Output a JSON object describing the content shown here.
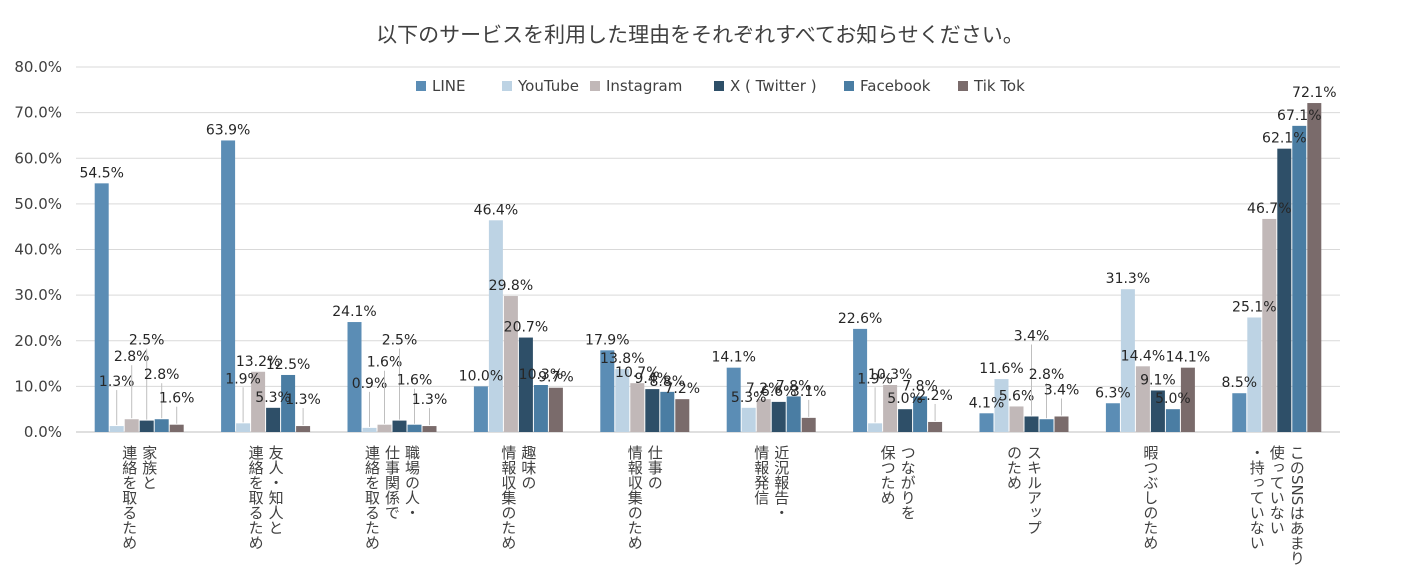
{
  "chart_data": {
    "type": "bar",
    "title": "以下のサービスを利用した理由をそれぞれすべてお知らせください。",
    "xlabel": "",
    "ylabel": "",
    "ylim": [
      0,
      80
    ],
    "yticks": [
      0,
      10,
      20,
      30,
      40,
      50,
      60,
      70,
      80
    ],
    "ytick_labels": [
      "0.0%",
      "10.0%",
      "20.0%",
      "30.0%",
      "40.0%",
      "50.0%",
      "60.0%",
      "70.0%",
      "80.0%"
    ],
    "grid": true,
    "legend_position": "top",
    "categories": [
      [
        "家族と",
        "連絡を取るため"
      ],
      [
        "友人・知人と",
        "連絡を取るため"
      ],
      [
        "職場の人・",
        "仕事関係で",
        "連絡を取るため"
      ],
      [
        "趣味の",
        "情報収集のため"
      ],
      [
        "仕事の",
        "情報収集のため"
      ],
      [
        "近況報告・",
        "情報発信"
      ],
      [
        "つながりを",
        "保つため"
      ],
      [
        "スキルアップ",
        "のため"
      ],
      [
        "暇つぶしのため"
      ],
      [
        "このSNSはあまり",
        "使っていない",
        "・持っていない"
      ]
    ],
    "series": [
      {
        "name": "LINE",
        "color": "#5b8db5",
        "values": [
          54.5,
          63.9,
          24.1,
          10.0,
          17.9,
          14.1,
          22.6,
          4.1,
          6.3,
          8.5
        ],
        "labels": [
          "54.5%",
          "63.9%",
          "24.1%",
          "10.0%",
          "17.9%",
          "14.1%",
          "22.6%",
          "4.1%",
          "6.3%",
          "8.5%"
        ]
      },
      {
        "name": "YouTube",
        "color": "#bdd3e4",
        "values": [
          1.3,
          1.9,
          0.9,
          46.4,
          13.8,
          5.3,
          1.9,
          11.6,
          31.3,
          25.1
        ],
        "labels": [
          "1.3%",
          "1.9%",
          "0.9%",
          "46.4%",
          "13.8%",
          "5.3%",
          "1.9%",
          "11.6%",
          "31.3%",
          "25.1%"
        ]
      },
      {
        "name": "Instagram",
        "color": "#c1b8b8",
        "values": [
          2.8,
          13.2,
          1.6,
          29.8,
          10.7,
          7.2,
          10.3,
          5.6,
          14.4,
          46.7
        ],
        "labels": [
          "2.8%",
          "13.2%",
          "1.6%",
          "29.8%",
          "10.7%",
          "7.2%",
          "10.3%",
          "5.6%",
          "14.4%",
          "46.7%"
        ]
      },
      {
        "name": "X ( Twitter )",
        "color": "#2e4f68",
        "values": [
          2.5,
          5.3,
          2.5,
          20.7,
          9.4,
          6.6,
          5.0,
          3.4,
          9.1,
          62.1
        ],
        "labels": [
          "2.5%",
          "5.3%",
          "2.5%",
          "20.7%",
          "9.4%",
          "6.6%",
          "5.0%",
          "3.4%",
          "9.1%",
          "62.1%"
        ]
      },
      {
        "name": "Facebook",
        "color": "#4a7da3",
        "values": [
          2.8,
          12.5,
          1.6,
          10.3,
          8.8,
          7.8,
          7.8,
          2.8,
          5.0,
          67.1
        ],
        "labels": [
          "2.8%",
          "12.5%",
          "1.6%",
          "10.3%",
          "8.8%",
          "7.8%",
          "7.8%",
          "2.8%",
          "5.0%",
          "67.1%"
        ]
      },
      {
        "name": "Tik Tok",
        "color": "#7a6b6b",
        "values": [
          1.6,
          1.3,
          1.3,
          9.7,
          7.2,
          3.1,
          2.2,
          3.4,
          14.1,
          72.1
        ],
        "labels": [
          "1.6%",
          "1.3%",
          "1.3%",
          "9.7%",
          "7.2%",
          "3.1%",
          "2.2%",
          "3.4%",
          "14.1%",
          "72.1%"
        ]
      }
    ]
  }
}
